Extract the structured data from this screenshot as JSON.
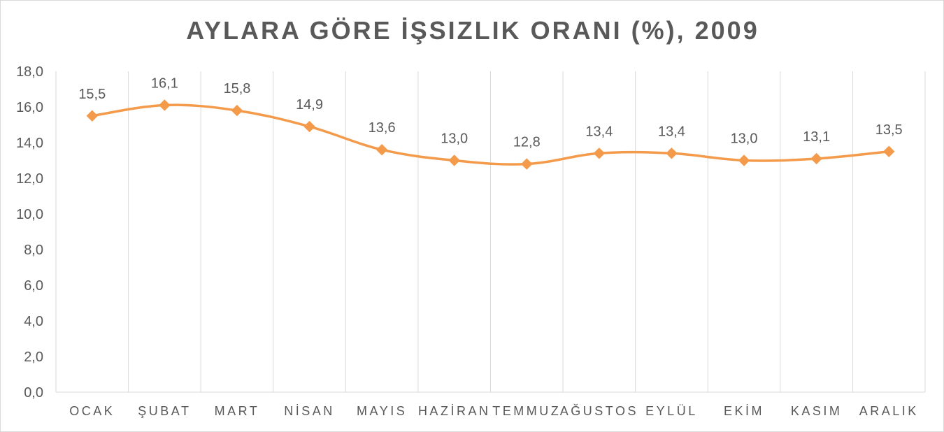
{
  "chart_data": {
    "type": "line",
    "title": "AYLARA GÖRE İŞSIZLIK ORANI (%), 2009",
    "xlabel": "",
    "ylabel": "",
    "categories": [
      "OCAK",
      "ŞUBAT",
      "MART",
      "NİSAN",
      "MAYIS",
      "HAZİRAN",
      "TEMMUZ",
      "AĞUSTOS",
      "EYLÜL",
      "EKİM",
      "KASIM",
      "ARALIK"
    ],
    "values": [
      15.5,
      16.1,
      15.8,
      14.9,
      13.6,
      13.0,
      12.8,
      13.4,
      13.4,
      13.0,
      13.1,
      13.5
    ],
    "data_labels": [
      "15,5",
      "16,1",
      "15,8",
      "14,9",
      "13,6",
      "13,0",
      "12,8",
      "13,4",
      "13,4",
      "13,0",
      "13,1",
      "13,5"
    ],
    "ylim": [
      0,
      18
    ],
    "yticks": [
      "0,0",
      "2,0",
      "4,0",
      "6,0",
      "8,0",
      "10,0",
      "12,0",
      "14,0",
      "16,0",
      "18,0"
    ],
    "grid": "vertical",
    "legend": "none",
    "line_color": "#F39A4B",
    "marker": "diamond"
  }
}
